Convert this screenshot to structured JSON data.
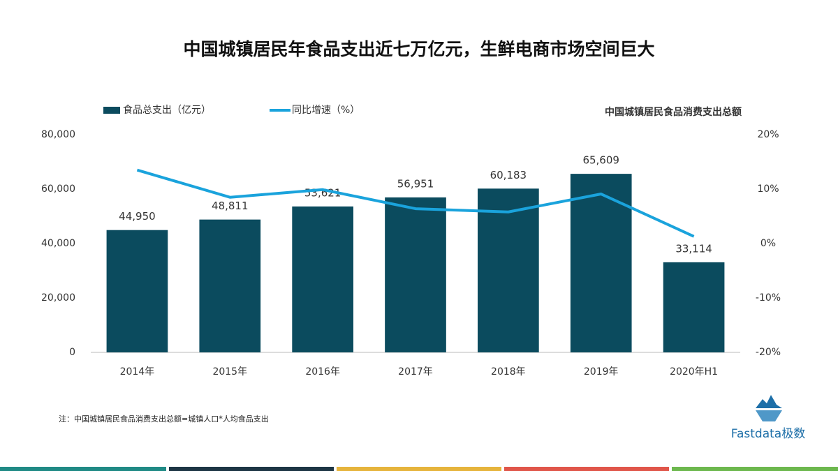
{
  "chart_data": {
    "type": "bar",
    "title": "中国城镇居民年食品支出近七万亿元，生鲜电商市场空间巨大",
    "annotation": "中国城镇居民食品消费支出总额",
    "footnote": "注：中国城镇居民食品消费支出总额=城镇人口*人均食品支出",
    "logo": "Fastdata极数",
    "categories": [
      "2014年",
      "2015年",
      "2016年",
      "2017年",
      "2018年",
      "2019年",
      "2020年H1"
    ],
    "series": [
      {
        "name": "食品总支出（亿元）",
        "type": "bar",
        "color": "#0b4b5e",
        "values": [
          44950,
          48811,
          53621,
          56951,
          60183,
          65609,
          33114
        ],
        "value_labels": [
          "44,950",
          "48,811",
          "53,621",
          "56,951",
          "60,183",
          "65,609",
          "33,114"
        ]
      },
      {
        "name": "同比增速（%）",
        "type": "line",
        "axis": "y2",
        "color": "#1aa3dc",
        "values": [
          13.5,
          8.5,
          9.9,
          6.4,
          5.8,
          9.1,
          1.3
        ]
      }
    ],
    "ylim": [
      0,
      80000
    ],
    "yticks": [
      0,
      {
        "value": 20000,
        "label": "20,000"
      },
      {
        "value": 40000,
        "label": "40,000"
      },
      {
        "value": 60000,
        "label": "60,000"
      },
      {
        "value": 80000,
        "label": "80,000"
      }
    ],
    "y2lim": [
      -20,
      20
    ],
    "y2ticks": [
      {
        "value": -20,
        "label": "-20%"
      },
      {
        "value": -10,
        "label": "-10%"
      },
      {
        "value": 0,
        "label": "0%"
      },
      {
        "value": 10,
        "label": "10%"
      },
      {
        "value": 20,
        "label": "20%"
      }
    ],
    "grid": false
  }
}
